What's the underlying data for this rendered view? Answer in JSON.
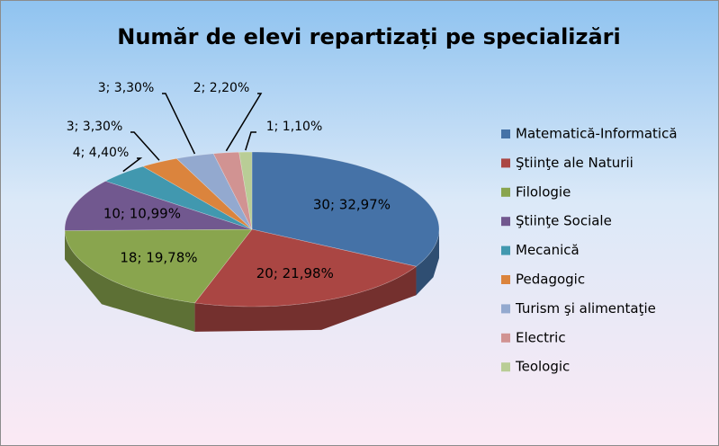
{
  "chart_data": {
    "type": "pie",
    "title": "Număr de elevi repartizați pe specializări",
    "categories": [
      "Matematică-Informatică",
      "Ştiinţe ale Naturii",
      "Filologie",
      "Ştiinţe Sociale",
      "Mecanică",
      "Pedagogic",
      "Turism şi alimentaţie",
      "Electric",
      "Teologic"
    ],
    "values": [
      30,
      20,
      18,
      10,
      4,
      3,
      3,
      2,
      1
    ],
    "value_labels": [
      "30; 32,97%",
      "20; 21,98%",
      "18; 19,78%",
      "10; 10,99%",
      "4; 4,40%",
      "3; 3,30%",
      "3; 3,30%",
      "2; 2,20%",
      "1; 1,10%"
    ],
    "colors": [
      "#4572a7",
      "#aa4643",
      "#89a54e",
      "#71588f",
      "#4198af",
      "#db843d",
      "#93a9cf",
      "#d19392",
      "#b9cd96"
    ],
    "legend": "right"
  }
}
